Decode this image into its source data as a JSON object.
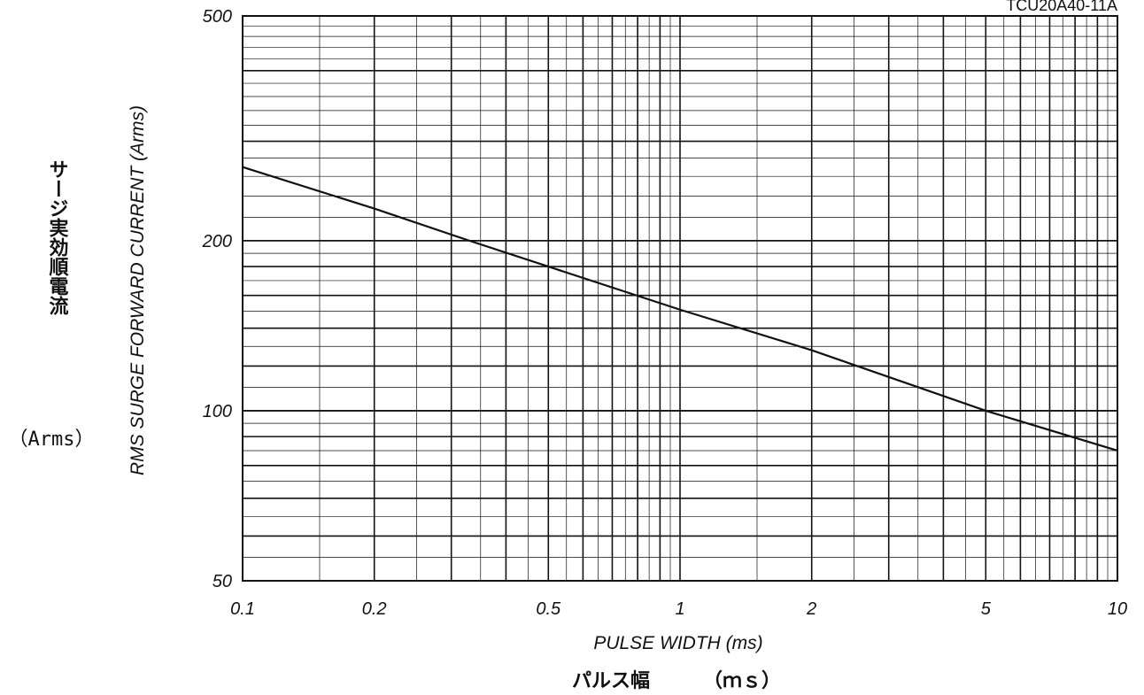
{
  "chart_data": {
    "type": "line",
    "model": "TCU20A40-11A",
    "x_scale": "log",
    "y_scale": "log",
    "xlim": [
      0.1,
      10
    ],
    "ylim": [
      50,
      500
    ],
    "x_ticks": [
      0.1,
      0.2,
      0.5,
      1,
      2,
      5,
      10
    ],
    "x_tick_labels": [
      "0.1",
      "0.2",
      "0.5",
      "1",
      "2",
      "5",
      "10"
    ],
    "y_ticks": [
      50,
      100,
      200,
      500
    ],
    "y_tick_labels": [
      "50",
      "100",
      "200",
      "500"
    ],
    "xlabel": "PULSE WIDTH (ms)",
    "xlabel_jp": "パルス幅",
    "xlabel_unit": "（ｍｓ）",
    "ylabel": "RMS SURGE FORWARD CURRENT (Arms)",
    "ylabel_jp": "サージ実効順電流",
    "ylabel_unit": "（Arms）",
    "grid": true,
    "series": [
      {
        "x": [
          0.1,
          0.2,
          0.33,
          0.5,
          1,
          2,
          5,
          10
        ],
        "y": [
          270,
          228,
          200,
          180,
          151,
          128,
          100,
          85
        ]
      }
    ]
  }
}
